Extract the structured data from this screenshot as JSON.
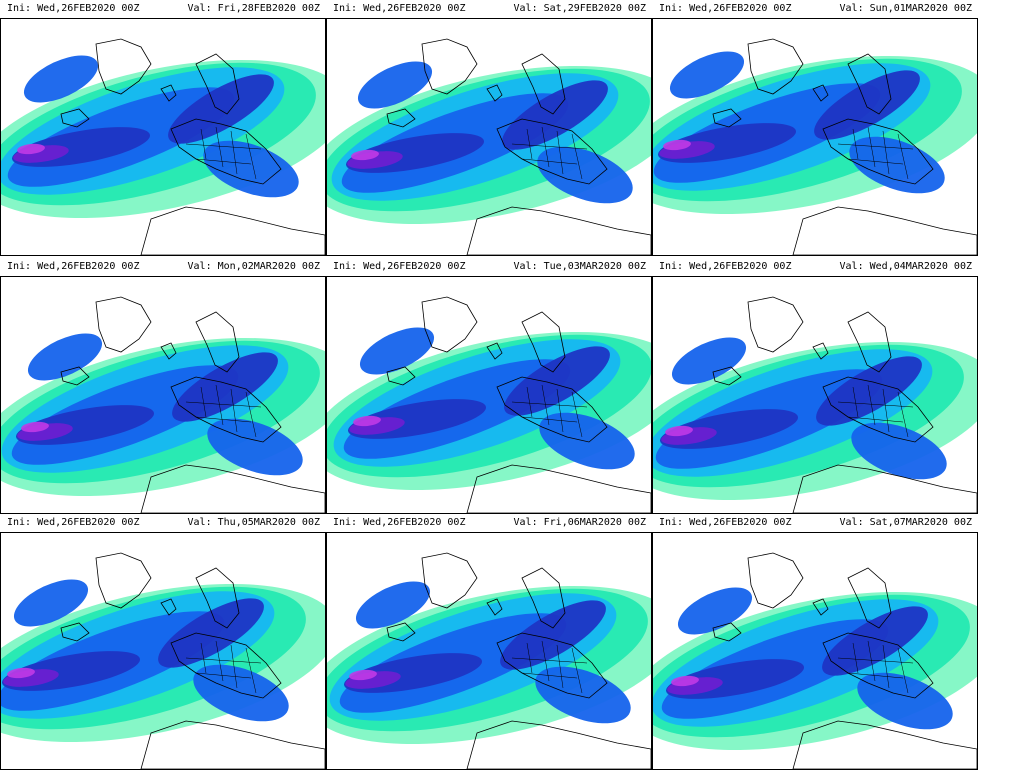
{
  "page": {
    "ini_prefix": "Ini:",
    "val_prefix": "Val:"
  },
  "colors": {
    "background": "#ffffff",
    "light_band": "#7ff7c4",
    "green_band": "#24e9b2",
    "cyan_band": "#16b7f2",
    "blue_band": "#1563ec",
    "deep_blue_band": "#1e35c4",
    "purple_band": "#6a1fd1",
    "magenta_band": "#c03ae6",
    "coastline": "#000000"
  },
  "panels": [
    {
      "ini": "Wed,26FEB2020 00Z",
      "val": "Fri,28FEB2020 00Z"
    },
    {
      "ini": "Wed,26FEB2020 00Z",
      "val": "Sat,29FEB2020 00Z"
    },
    {
      "ini": "Wed,26FEB2020 00Z",
      "val": "Sun,01MAR2020 00Z"
    },
    {
      "ini": "Wed,26FEB2020 00Z",
      "val": "Mon,02MAR2020 00Z"
    },
    {
      "ini": "Wed,26FEB2020 00Z",
      "val": "Tue,03MAR2020 00Z"
    },
    {
      "ini": "Wed,26FEB2020 00Z",
      "val": "Wed,04MAR2020 00Z"
    },
    {
      "ini": "Wed,26FEB2020 00Z",
      "val": "Thu,05MAR2020 00Z"
    },
    {
      "ini": "Wed,26FEB2020 00Z",
      "val": "Fri,06MAR2020 00Z"
    },
    {
      "ini": "Wed,26FEB2020 00Z",
      "val": "Sat,07MAR2020 00Z"
    }
  ]
}
